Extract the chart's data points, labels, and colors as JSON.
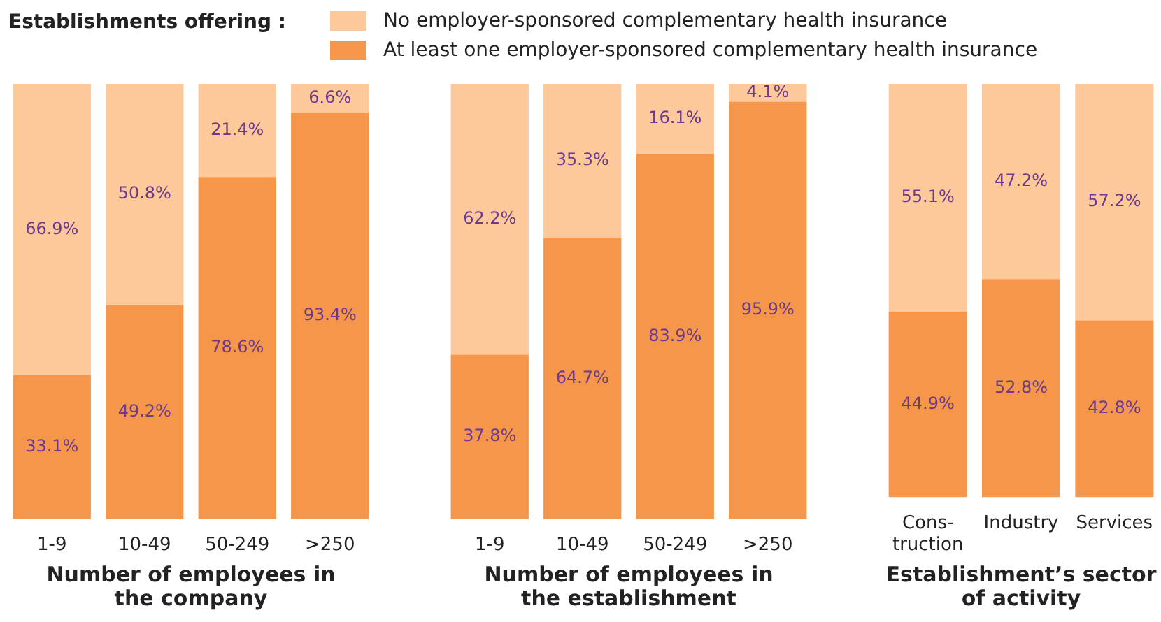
{
  "chart_data": [
    {
      "type": "bar",
      "stacked": true,
      "legend": "top",
      "legend_title": "Establishments offering :",
      "xlabel": "Number of employees in the company",
      "categories": [
        "1-9",
        "10-49",
        "50-249",
        ">250"
      ],
      "series": [
        {
          "name": "At least one employer-sponsored complementary health insurance",
          "color": "#f5964a",
          "values": [
            33.1,
            49.2,
            78.6,
            93.4
          ],
          "value_labels": [
            "33.1%",
            "49.2%",
            "78.6%",
            "93.4%"
          ]
        },
        {
          "name": "No employer-sponsored complementary health insurance",
          "color": "#fdc89a",
          "values": [
            66.9,
            50.8,
            21.4,
            6.6
          ],
          "value_labels": [
            "66.9%",
            "50.8%",
            "21.4%",
            "6.6%"
          ]
        }
      ]
    },
    {
      "type": "bar",
      "stacked": true,
      "xlabel": "Number of employees in the establishment",
      "categories": [
        "1-9",
        "10-49",
        "50-249",
        ">250"
      ],
      "series": [
        {
          "color": "#f5964a",
          "values": [
            37.8,
            64.7,
            83.9,
            95.9
          ],
          "value_labels": [
            "37.8%",
            "64.7%",
            "83.9%",
            "95.9%"
          ]
        },
        {
          "color": "#fdc89a",
          "values": [
            62.2,
            35.3,
            16.1,
            4.1
          ],
          "value_labels": [
            "62.2%",
            "35.3%",
            "16.1%",
            "4.1%"
          ]
        }
      ]
    },
    {
      "type": "bar",
      "stacked": true,
      "xlabel": "Establishment’s sector of activity",
      "categories": [
        "Cons-\ntruction",
        "Industry",
        "Services"
      ],
      "series": [
        {
          "color": "#f5964a",
          "values": [
            44.9,
            52.8,
            42.8
          ],
          "value_labels": [
            "44.9%",
            "52.8%",
            "42.8%"
          ]
        },
        {
          "color": "#fdc89a",
          "values": [
            55.1,
            47.2,
            57.2
          ],
          "value_labels": [
            "55.1%",
            "47.2%",
            "57.2%"
          ]
        }
      ]
    }
  ]
}
